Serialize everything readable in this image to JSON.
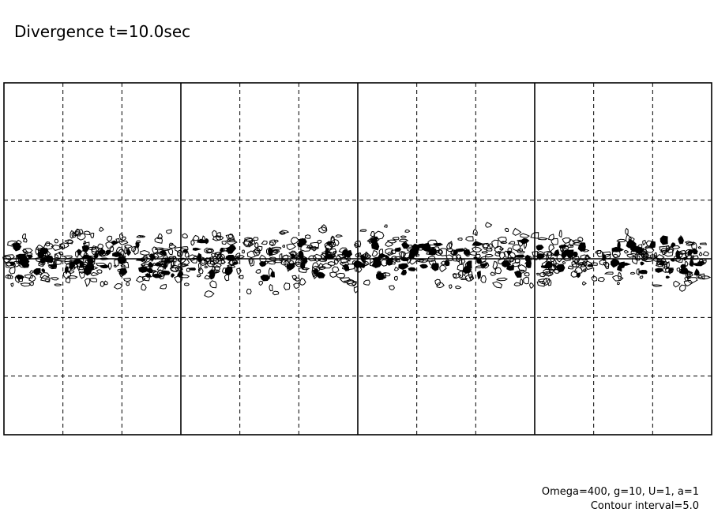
{
  "chart_data": {
    "type": "contour",
    "title": "Divergence t=10.0sec",
    "annotations": [
      "Omega=400, g=10, U=1, a=1",
      "Contour interval=5.0"
    ]
  }
}
